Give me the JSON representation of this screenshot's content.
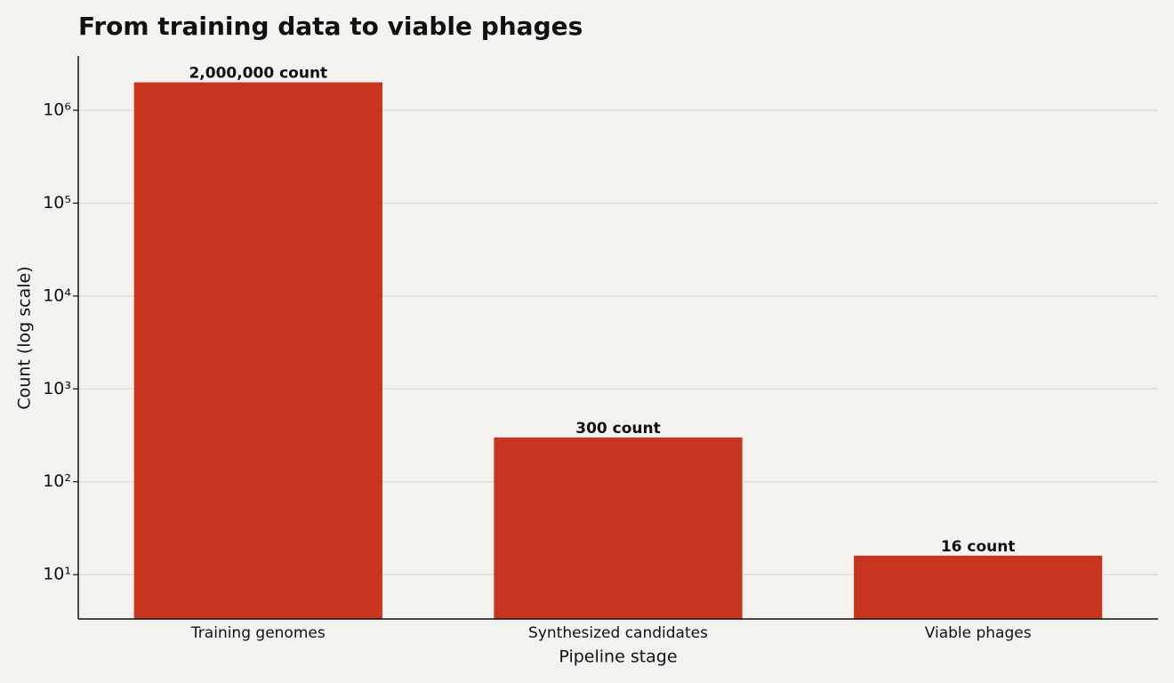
{
  "chart_data": {
    "type": "bar",
    "title": "From training data to viable phages",
    "xlabel": "Pipeline stage",
    "ylabel": "Count (log scale)",
    "categories": [
      "Training genomes",
      "Synthesized candidates",
      "Viable phages"
    ],
    "values": [
      2000000,
      300,
      16
    ],
    "value_labels": [
      "2,000,000 count",
      "300 count",
      "16 count"
    ],
    "color": "#c9341f",
    "ylim": [
      3.33,
      3840000
    ],
    "yticks": [
      {
        "value": 10,
        "label": "10¹"
      },
      {
        "value": 100,
        "label": "10²"
      },
      {
        "value": 1000,
        "label": "10³"
      },
      {
        "value": 10000,
        "label": "10⁴"
      },
      {
        "value": 100000,
        "label": "10⁵"
      },
      {
        "value": 1000000,
        "label": "10⁶"
      }
    ],
    "log_scale": true,
    "grid": true
  }
}
